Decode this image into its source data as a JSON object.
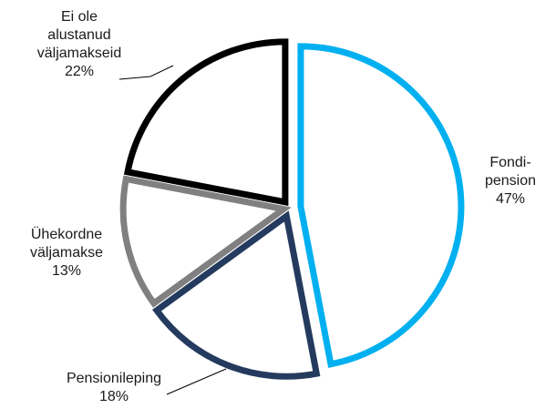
{
  "chart_data": {
    "type": "pie",
    "title": "",
    "slices": [
      {
        "label_lines": [
          "Fondi-",
          "pension"
        ],
        "value": 47,
        "value_text": "47%",
        "color": "#00b0f0"
      },
      {
        "label_lines": [
          "Pensionileping"
        ],
        "value": 18,
        "value_text": "18%",
        "color": "#243a5e"
      },
      {
        "label_lines": [
          "Ühekordne",
          "väljamakse"
        ],
        "value": 13,
        "value_text": "13%",
        "color": "#808080"
      },
      {
        "label_lines": [
          "Ei ole",
          "alustanud",
          "väljamakseid"
        ],
        "value": 22,
        "value_text": "22%",
        "color": "#000000"
      }
    ]
  }
}
